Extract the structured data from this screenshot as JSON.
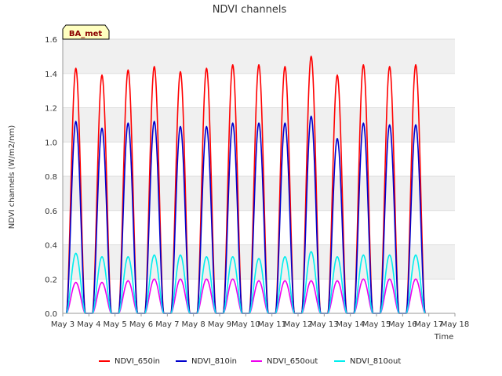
{
  "chart_data": {
    "type": "line",
    "title": "NDVI channels",
    "xlabel": "Time",
    "ylabel": "NDVI channels (W/m2/nm)",
    "badge": "BA_met",
    "ylim": [
      0,
      1.6
    ],
    "xlim": [
      3,
      18
    ],
    "yticks": [
      0.0,
      0.2,
      0.4,
      0.6,
      0.8,
      1.0,
      1.2,
      1.4,
      1.6
    ],
    "ytick_labels": [
      "0.0",
      "0.2",
      "0.4",
      "0.6",
      "0.8",
      "1.0",
      "1.2",
      "1.4",
      "1.6"
    ],
    "xticks": [
      3,
      4,
      5,
      6,
      7,
      8,
      9,
      10,
      11,
      12,
      13,
      14,
      15,
      16,
      17,
      18
    ],
    "xtick_labels": [
      "May 3",
      "May 4",
      "May 5",
      "May 6",
      "May 7",
      "May 8",
      "May 9",
      "May 10",
      "May 11",
      "May 12",
      "May 13",
      "May 14",
      "May 15",
      "May 16",
      "May 17",
      "May 18"
    ],
    "day_peaks_x": [
      3.5,
      4.5,
      5.5,
      6.5,
      7.5,
      8.5,
      9.5,
      10.5,
      11.5,
      12.5,
      13.5,
      14.5,
      15.5,
      16.5
    ],
    "series": [
      {
        "name": "NDVI_650in",
        "color": "#ff0000",
        "peaks": [
          1.43,
          1.39,
          1.42,
          1.44,
          1.41,
          1.43,
          1.45,
          1.45,
          1.44,
          1.5,
          1.39,
          1.45,
          1.44,
          1.45
        ]
      },
      {
        "name": "NDVI_810in",
        "color": "#0000cc",
        "peaks": [
          1.12,
          1.08,
          1.11,
          1.12,
          1.09,
          1.09,
          1.11,
          1.11,
          1.11,
          1.15,
          1.02,
          1.11,
          1.1,
          1.1
        ]
      },
      {
        "name": "NDVI_650out",
        "color": "#ee00ee",
        "peaks": [
          0.18,
          0.18,
          0.19,
          0.2,
          0.2,
          0.2,
          0.2,
          0.19,
          0.19,
          0.19,
          0.19,
          0.2,
          0.2,
          0.2
        ]
      },
      {
        "name": "NDVI_810out",
        "color": "#00eeee",
        "peaks": [
          0.35,
          0.33,
          0.33,
          0.34,
          0.34,
          0.33,
          0.33,
          0.32,
          0.33,
          0.36,
          0.33,
          0.34,
          0.34,
          0.34
        ]
      }
    ]
  }
}
